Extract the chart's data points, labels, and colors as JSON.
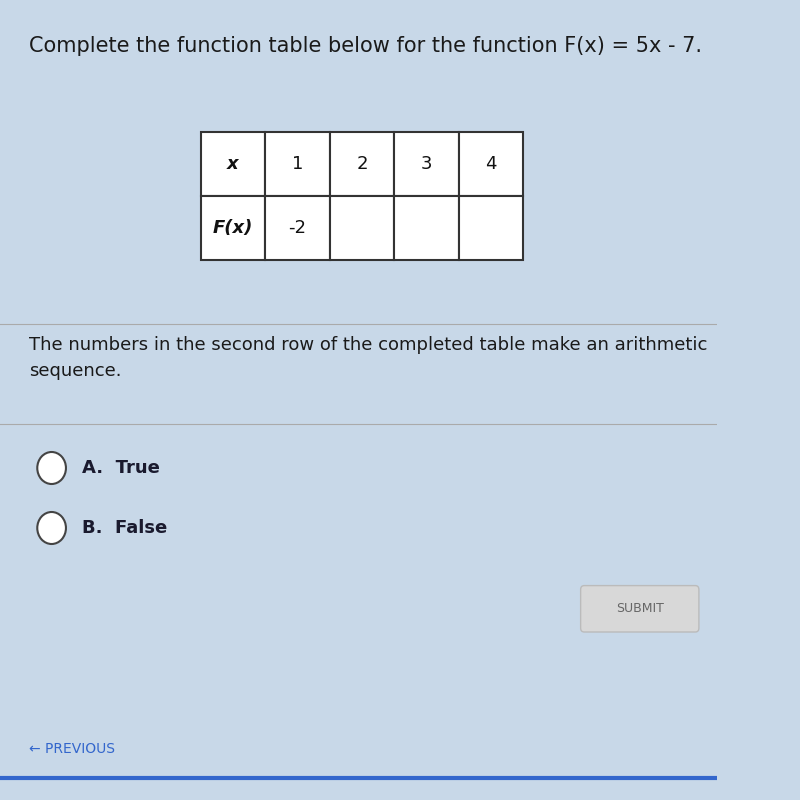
{
  "title": "Complete the function table below for the function F(x) = 5x - 7.",
  "title_fontsize": 15,
  "title_color": "#1a1a1a",
  "bg_color": "#c8d8e8",
  "table_x_labels": [
    "x",
    "1",
    "2",
    "3",
    "4"
  ],
  "table_fx_labels": [
    "F(x)",
    "-2",
    "",
    "",
    ""
  ],
  "question_text": "The numbers in the second row of the completed table make an arithmetic\nsequence.",
  "question_fontsize": 13,
  "question_color": "#1a1a1a",
  "option_A": "A.  True",
  "option_B": "B.  False",
  "option_fontsize": 13,
  "option_color": "#1a1a2e",
  "submit_text": "SUBMIT",
  "prev_text": "← PREVIOUS",
  "separator_color": "#aaaaaa",
  "table_border_color": "#333333",
  "table_bg": "#ffffff",
  "prev_color": "#3366cc"
}
